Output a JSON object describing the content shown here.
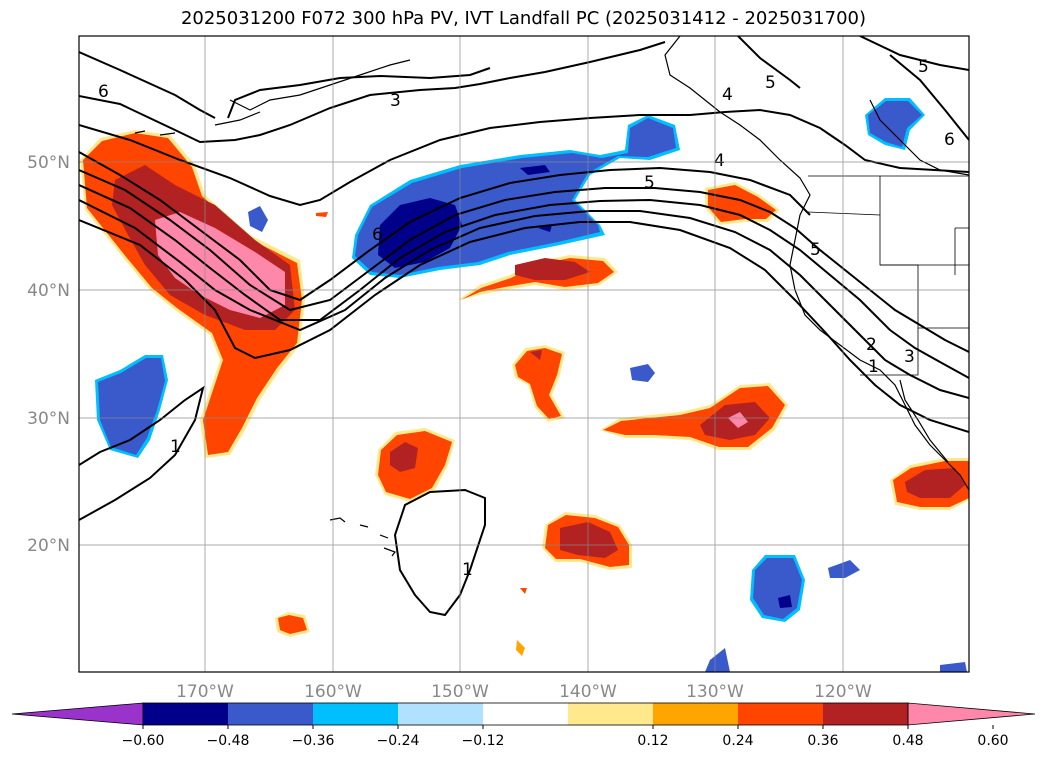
{
  "title": "2025031200 F072 300 hPa PV, IVT Landfall PC (2025031412 - 2025031700)",
  "lat_labels": [
    "50°N",
    "40°N",
    "30°N",
    "20°N"
  ],
  "lon_labels": [
    "170°W",
    "160°W",
    "150°W",
    "140°W",
    "130°W",
    "120°W"
  ],
  "colorbar": {
    "ticks": [
      "−0.60",
      "−0.48",
      "−0.36",
      "−0.24",
      "−0.12",
      "0.12",
      "0.24",
      "0.36",
      "0.48",
      "0.60"
    ],
    "colors": [
      "#9933cc",
      "#00008b",
      "#3a5acc",
      "#00bfff",
      "#b0e2ff",
      "#ffffff",
      "#ffe98c",
      "#ffa500",
      "#ff4500",
      "#b22222",
      "#ff88aa"
    ]
  },
  "contour_labels": [
    {
      "text": "6"
    },
    {
      "text": "3"
    },
    {
      "text": "5"
    },
    {
      "text": "4"
    },
    {
      "text": "5"
    },
    {
      "text": "4"
    },
    {
      "text": "6"
    },
    {
      "text": "5"
    },
    {
      "text": "6"
    },
    {
      "text": "5"
    },
    {
      "text": "2"
    },
    {
      "text": "3"
    },
    {
      "text": "1"
    },
    {
      "text": "1"
    },
    {
      "text": "1"
    }
  ]
}
